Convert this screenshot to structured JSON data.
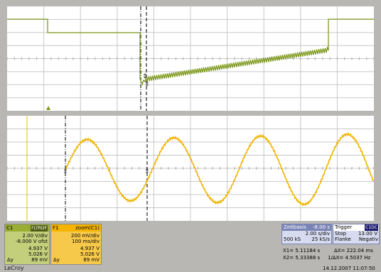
{
  "colors": {
    "ch1": "#7f9a1f",
    "f1": "#f0b400",
    "grid": "#c8c8c8",
    "panel_gray": "#b9b7b3",
    "ch1_badge": "#99ad33",
    "f1_badge": "#f4b400",
    "timebase_badge": "#7a84b5"
  },
  "channels": {
    "c1": {
      "name": "C1",
      "tag": "FLTRDF",
      "vdiv": "2.00 V/div",
      "offset": "-8.000 V ofst",
      "x1": "4.937 V",
      "x2": "5.026 V",
      "delta_label": "Δy",
      "delta": "89 mV"
    },
    "f1": {
      "name": "F1",
      "tag": "zoom(C1)",
      "vdiv": "200 mV/div",
      "tdiv": "100 ms/div",
      "x1": "4.937 V",
      "x2": "5.026 V",
      "delta_label": "Δy",
      "delta": "89 mV"
    }
  },
  "timebase": {
    "label": "Zeitbasis",
    "value": "-8.00 s",
    "sdiv": "2.00 s/div",
    "samples": "500 kS",
    "rate": "25 kS/s"
  },
  "trigger": {
    "label": "Trigger",
    "source": "C1DC",
    "mode": "Stop",
    "level": "13.00 V",
    "edge": "Flanke",
    "slope": "Negativ"
  },
  "cursors": {
    "x1": "X1=  5.11184 s",
    "x2": "X2=  5.33388 s",
    "dx": "ΔX=  222.04 ms",
    "inv_dx": "1/ΔX=  4.5037 Hz"
  },
  "footer": {
    "brand": "LeCroy",
    "timestamp": "14.12.2007 11:07:50"
  }
}
